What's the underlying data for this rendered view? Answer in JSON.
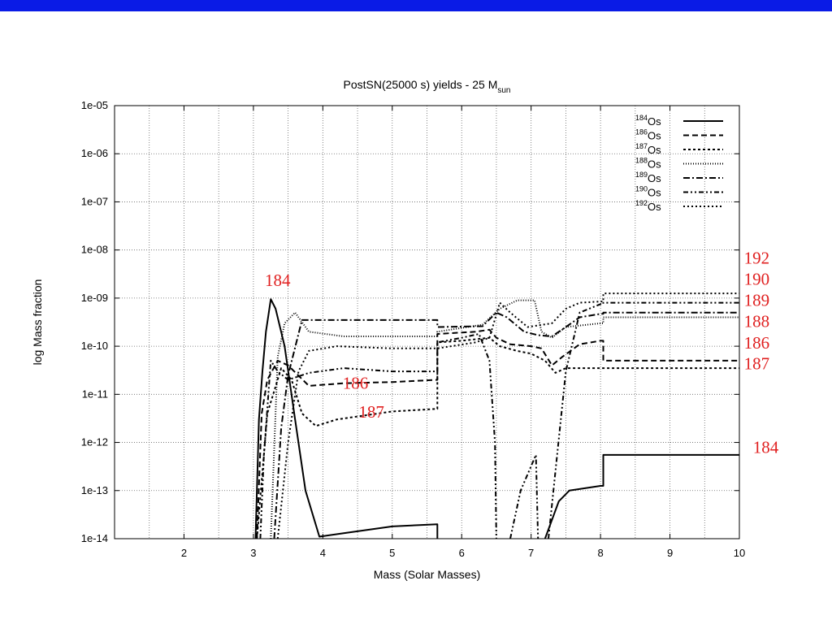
{
  "colors": {
    "top_bar": "#0a1be6",
    "annotation": "#e02020",
    "plot_line": "#000000",
    "grid": "#666666"
  },
  "chart_data": {
    "type": "line",
    "title": "PostSN(25000 s) yields - 25 M",
    "title_subscript": "sun",
    "xlabel": "Mass (Solar Masses)",
    "ylabel": "log Mass fraction",
    "xlim": [
      1,
      10
    ],
    "ylim": [
      1e-14,
      1e-05
    ],
    "y_scale": "log",
    "grid": true,
    "legend_position": "top-right",
    "x_ticks": [
      "2",
      "3",
      "4",
      "5",
      "6",
      "7",
      "8",
      "9",
      "10"
    ],
    "y_ticks": [
      "1e-05",
      "1e-06",
      "1e-07",
      "1e-08",
      "1e-09",
      "1e-10",
      "1e-11",
      "1e-12",
      "1e-13",
      "1e-14"
    ],
    "series": [
      {
        "name": "Os",
        "mass_number": "184",
        "dash": "",
        "points": [
          [
            3.03,
            1e-14
          ],
          [
            3.08,
            3e-12
          ],
          [
            3.13,
            3e-11
          ],
          [
            3.18,
            2e-10
          ],
          [
            3.25,
            9.5e-10
          ],
          [
            3.32,
            6e-10
          ],
          [
            3.45,
            1e-10
          ],
          [
            3.6,
            3e-12
          ],
          [
            3.75,
            1e-13
          ],
          [
            3.95,
            1.1e-14
          ],
          [
            4.3,
            1.3e-14
          ],
          [
            5,
            1.8e-14
          ],
          [
            5.65,
            2e-14
          ],
          [
            5.65,
            1e-14
          ]
        ]
      },
      {
        "name": "Os",
        "mass_number": "184",
        "dash": "",
        "points": [
          [
            7.2,
            1e-14
          ],
          [
            7.4,
            6e-14
          ],
          [
            7.55,
            1e-13
          ],
          [
            8,
            1.25e-13
          ],
          [
            8.04,
            1.25e-13
          ],
          [
            8.04,
            5.5e-13
          ],
          [
            10,
            5.5e-13
          ]
        ]
      },
      {
        "name": "Os",
        "mass_number": "186",
        "dash": "7,4",
        "points": [
          [
            3.05,
            1e-14
          ],
          [
            3.12,
            4e-12
          ],
          [
            3.2,
            2e-11
          ],
          [
            3.35,
            5e-11
          ],
          [
            3.5,
            4e-11
          ],
          [
            3.8,
            1.5e-11
          ],
          [
            4.3,
            1.7e-11
          ],
          [
            5,
            1.8e-11
          ],
          [
            5.65,
            2e-11
          ],
          [
            5.65,
            1.8e-10
          ],
          [
            6.2,
            2e-10
          ],
          [
            6.4,
            2.2e-10
          ],
          [
            6.5,
            1.5e-10
          ],
          [
            6.7,
            1.1e-10
          ],
          [
            7,
            1e-10
          ],
          [
            7.15,
            9e-11
          ],
          [
            7.3,
            4e-11
          ],
          [
            7.45,
            6e-11
          ],
          [
            7.7,
            1.1e-10
          ],
          [
            8,
            1.3e-10
          ],
          [
            8.04,
            1.3e-10
          ],
          [
            8.04,
            5e-11
          ],
          [
            10,
            5e-11
          ]
        ]
      },
      {
        "name": "Os",
        "mass_number": "187",
        "dash": "3,3",
        "points": [
          [
            3.05,
            1e-14
          ],
          [
            3.2,
            4e-12
          ],
          [
            3.4,
            3.5e-11
          ],
          [
            3.55,
            2e-11
          ],
          [
            3.7,
            4e-12
          ],
          [
            3.9,
            2.2e-12
          ],
          [
            4.2,
            3e-12
          ],
          [
            5,
            4.4e-12
          ],
          [
            5.65,
            5e-12
          ],
          [
            5.65,
            1.2e-10
          ],
          [
            6,
            1.3e-10
          ],
          [
            6.4,
            1.5e-10
          ],
          [
            6.55,
            1e-10
          ],
          [
            6.8,
            8e-11
          ],
          [
            7,
            7e-11
          ],
          [
            7.2,
            5e-11
          ],
          [
            7.35,
            2.8e-11
          ],
          [
            7.5,
            3.5e-11
          ],
          [
            10,
            3.5e-11
          ]
        ]
      },
      {
        "name": "Os",
        "mass_number": "188",
        "dash": "1,2",
        "points": [
          [
            3.25,
            1e-14
          ],
          [
            3.35,
            6e-11
          ],
          [
            3.45,
            3e-10
          ],
          [
            3.6,
            5e-10
          ],
          [
            3.8,
            2e-10
          ],
          [
            4.3,
            1.6e-10
          ],
          [
            5,
            1.6e-10
          ],
          [
            5.65,
            1.6e-10
          ],
          [
            5.65,
            2e-10
          ],
          [
            6.3,
            2.8e-10
          ],
          [
            6.55,
            6e-10
          ],
          [
            6.8,
            9e-10
          ],
          [
            7.05,
            9e-10
          ],
          [
            7.15,
            2e-10
          ],
          [
            7.3,
            1.5e-10
          ],
          [
            7.5,
            2.5e-10
          ],
          [
            8,
            3e-10
          ],
          [
            8.04,
            3e-10
          ],
          [
            8.04,
            4e-10
          ],
          [
            10,
            4e-10
          ]
        ]
      },
      {
        "name": "Os",
        "mass_number": "189",
        "dash": "8,3,2,3",
        "points": [
          [
            3.3,
            1e-14
          ],
          [
            3.4,
            2e-12
          ],
          [
            3.5,
            2.5e-11
          ],
          [
            3.7,
            3.5e-10
          ],
          [
            4,
            3.5e-10
          ],
          [
            5,
            3.5e-10
          ],
          [
            5.65,
            3.5e-10
          ],
          [
            5.65,
            2.5e-10
          ],
          [
            6.3,
            2.6e-10
          ],
          [
            6.5,
            5e-10
          ],
          [
            6.65,
            4e-10
          ],
          [
            6.9,
            2e-10
          ],
          [
            7.1,
            1.7e-10
          ],
          [
            7.3,
            1.6e-10
          ],
          [
            7.5,
            2.5e-10
          ],
          [
            7.7,
            4e-10
          ],
          [
            8,
            4.7e-10
          ],
          [
            8.04,
            4.7e-10
          ],
          [
            8.04,
            5e-10
          ],
          [
            10,
            5e-10
          ]
        ]
      },
      {
        "name": "Os",
        "mass_number": "190",
        "dash": "6,3,2,3,2,3",
        "points": [
          [
            3.1,
            1e-14
          ],
          [
            3.15,
            5e-13
          ],
          [
            3.25,
            5e-11
          ],
          [
            3.35,
            3e-11
          ],
          [
            3.5,
            2e-11
          ],
          [
            3.8,
            2.8e-11
          ],
          [
            4.3,
            3.5e-11
          ],
          [
            5,
            3e-11
          ],
          [
            5.65,
            3e-11
          ],
          [
            5.65,
            1.2e-10
          ],
          [
            6,
            1.5e-10
          ],
          [
            6.25,
            1.8e-10
          ],
          [
            6.4,
            5e-11
          ],
          [
            6.48,
            1e-12
          ],
          [
            6.5,
            1e-14
          ]
        ]
      },
      {
        "name": "Os",
        "mass_number": "190",
        "dash": "6,3,2,3,2,3",
        "points": [
          [
            6.7,
            1e-14
          ],
          [
            6.85,
            1e-13
          ],
          [
            7.07,
            5.5e-13
          ],
          [
            7.1,
            1e-14
          ]
        ]
      },
      {
        "name": "Os",
        "mass_number": "190",
        "dash": "6,3,2,3,2,3",
        "points": [
          [
            7.25,
            1e-14
          ],
          [
            7.5,
            3e-11
          ],
          [
            7.7,
            5e-10
          ],
          [
            8,
            7.5e-10
          ],
          [
            8.04,
            7.5e-10
          ],
          [
            8.04,
            8e-10
          ],
          [
            10,
            8e-10
          ]
        ]
      },
      {
        "name": "Os",
        "mass_number": "192",
        "dash": "2,3",
        "points": [
          [
            3.35,
            1e-14
          ],
          [
            3.5,
            1e-12
          ],
          [
            3.65,
            3e-11
          ],
          [
            3.8,
            8e-11
          ],
          [
            4.2,
            1e-10
          ],
          [
            5,
            9e-11
          ],
          [
            5.65,
            9e-11
          ],
          [
            6.2,
            1.2e-10
          ],
          [
            6.4,
            1.5e-10
          ],
          [
            6.55,
            8e-10
          ],
          [
            6.7,
            5e-10
          ],
          [
            6.95,
            2.5e-10
          ],
          [
            7.3,
            3e-10
          ],
          [
            7.5,
            6e-10
          ],
          [
            7.7,
            8e-10
          ],
          [
            8,
            8.5e-10
          ],
          [
            8.04,
            8.5e-10
          ],
          [
            8.04,
            1.25e-09
          ],
          [
            10,
            1.25e-09
          ]
        ]
      }
    ],
    "annotations": [
      {
        "text": "184",
        "x": 3.35,
        "y": 1.8e-09
      },
      {
        "text": "186",
        "x": 4.47,
        "y": 1.3e-11
      },
      {
        "text": "187",
        "x": 4.7,
        "y": 3.3e-12
      },
      {
        "text": "192",
        "x": 10.25,
        "y": 5.2e-09
      },
      {
        "text": "190",
        "x": 10.25,
        "y": 1.9e-09
      },
      {
        "text": "189",
        "x": 10.25,
        "y": 6.9e-10
      },
      {
        "text": "188",
        "x": 10.25,
        "y": 2.5e-10
      },
      {
        "text": "186",
        "x": 10.25,
        "y": 9e-11
      },
      {
        "text": "187",
        "x": 10.25,
        "y": 3.3e-11
      },
      {
        "text": "184",
        "x": 10.38,
        "y": 6e-13
      }
    ]
  }
}
